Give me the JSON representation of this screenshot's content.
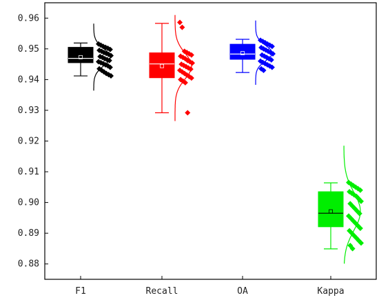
{
  "chart_data": {
    "type": "box",
    "title": "",
    "xlabel": "",
    "ylabel": "",
    "ylim": [
      0.875,
      0.965
    ],
    "yticks": [
      0.88,
      0.89,
      0.9,
      0.91,
      0.92,
      0.93,
      0.94,
      0.95,
      0.96
    ],
    "ytick_labels": [
      "0.88",
      "0.89",
      "0.90",
      "0.91",
      "0.92",
      "0.93",
      "0.94",
      "0.95",
      "0.96"
    ],
    "categories": [
      "F1",
      "Recall",
      "OA",
      "Kappa"
    ],
    "grid": false,
    "series": [
      {
        "name": "F1",
        "color": "#000000",
        "median_color": "#ffffff",
        "whisker_low": 0.9412,
        "q1": 0.9455,
        "median": 0.9469,
        "mean": 0.9473,
        "q3": 0.9505,
        "whisker_high": 0.9519,
        "points": [
          0.9516,
          0.9512,
          0.9508,
          0.9505,
          0.9502,
          0.9498,
          0.9495,
          0.9492,
          0.9488,
          0.9485,
          0.9482,
          0.9478,
          0.9475,
          0.9472,
          0.9468,
          0.9465,
          0.9462,
          0.9458,
          0.9455,
          0.9452,
          0.9448,
          0.9445,
          0.944,
          0.9435,
          0.943,
          0.9425,
          0.942,
          0.9416,
          0.9412
        ],
        "curve": {
          "mu": 0.9473,
          "sigma": 0.0028,
          "ymin": 0.9364,
          "ymax": 0.9582
        }
      },
      {
        "name": "Recall",
        "color": "#ff0000",
        "median_color": "#ffffff",
        "whisker_low": 0.9292,
        "q1": 0.9406,
        "median": 0.9451,
        "mean": 0.9444,
        "q3": 0.9487,
        "whisker_high": 0.9583,
        "points": [
          0.9586,
          0.957,
          0.9492,
          0.9488,
          0.9484,
          0.948,
          0.9476,
          0.9472,
          0.9468,
          0.9462,
          0.9458,
          0.9454,
          0.945,
          0.9446,
          0.9442,
          0.9438,
          0.9434,
          0.943,
          0.9425,
          0.942,
          0.9415,
          0.941,
          0.9405,
          0.94,
          0.9395,
          0.939,
          0.9292
        ],
        "curve": {
          "mu": 0.9444,
          "sigma": 0.0042,
          "ymin": 0.9265,
          "ymax": 0.961
        }
      },
      {
        "name": "OA",
        "color": "#0000ff",
        "median_color": "#ffffff",
        "whisker_low": 0.9423,
        "q1": 0.9466,
        "median": 0.9483,
        "mean": 0.9486,
        "q3": 0.9515,
        "whisker_high": 0.9531,
        "points": [
          0.9528,
          0.9524,
          0.952,
          0.9516,
          0.9512,
          0.9508,
          0.9504,
          0.95,
          0.9496,
          0.9492,
          0.9488,
          0.9484,
          0.948,
          0.9476,
          0.9472,
          0.9468,
          0.9464,
          0.946,
          0.9456,
          0.9452,
          0.9448,
          0.9444,
          0.944,
          0.9435,
          0.943
        ],
        "curve": {
          "mu": 0.9486,
          "sigma": 0.0025,
          "ymin": 0.9383,
          "ymax": 0.9592
        }
      },
      {
        "name": "Kappa",
        "color": "#00ee00",
        "median_color": "#000000",
        "whisker_low": 0.8849,
        "q1": 0.8921,
        "median": 0.8965,
        "mean": 0.8971,
        "q3": 0.9035,
        "whisker_high": 0.9064,
        "points": [
          0.9065,
          0.906,
          0.9055,
          0.905,
          0.9045,
          0.904,
          0.9035,
          0.903,
          0.9025,
          0.902,
          0.9012,
          0.9004,
          0.8996,
          0.8988,
          0.898,
          0.8972,
          0.8964,
          0.8956,
          0.8948,
          0.894,
          0.8932,
          0.8924,
          0.8916,
          0.8908,
          0.89,
          0.8892,
          0.8884,
          0.8876,
          0.8868,
          0.886,
          0.885
        ],
        "curve": {
          "mu": 0.8971,
          "sigma": 0.0062,
          "ymin": 0.8801,
          "ymax": 0.9185
        }
      }
    ]
  }
}
